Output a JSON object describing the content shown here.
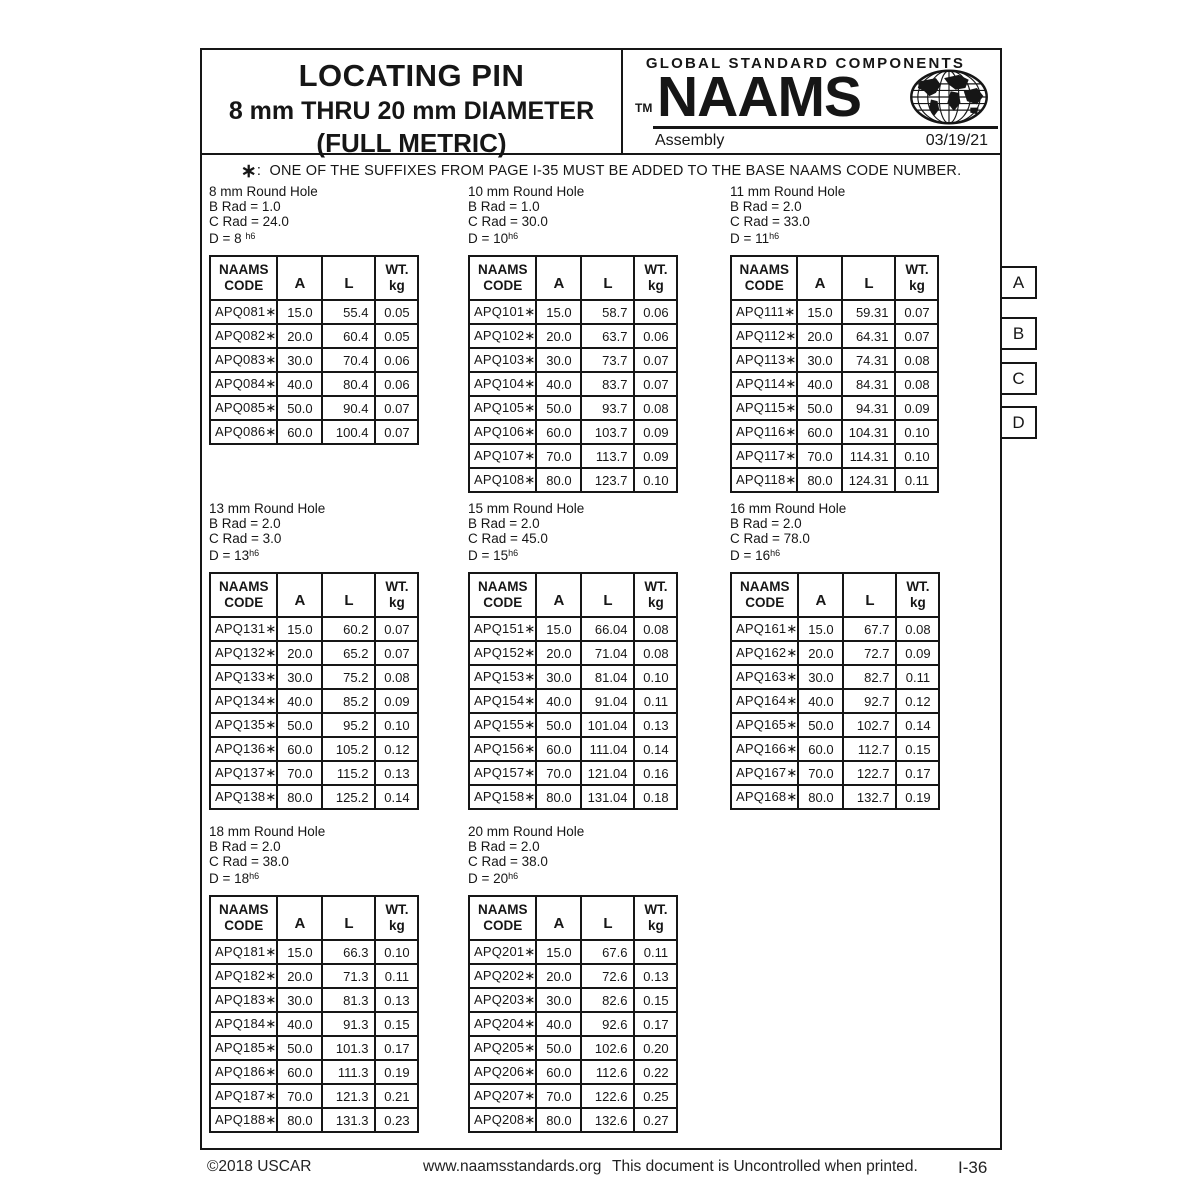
{
  "header": {
    "title_line1": "LOCATING PIN",
    "title_line2": "8 mm THRU 20 mm DIAMETER",
    "title_line3": "(FULL METRIC)",
    "brand_top": "GLOBAL STANDARD COMPONENTS",
    "brand_tm": "TM",
    "brand_name": "NAAMS",
    "globe_icon": "globe-icon",
    "subtitle_left": "Assembly",
    "subtitle_right": "03/19/21"
  },
  "note": {
    "star": "∗",
    "separator": ":",
    "text": "ONE OF THE SUFFIXES FROM PAGE I-35 MUST BE ADDED TO THE BASE NAAMS CODE NUMBER."
  },
  "table_headers": {
    "code": "NAAMS\nCODE",
    "a": "A",
    "l": "L",
    "wt": "WT.\nkg"
  },
  "side_tabs": {
    "a": "A",
    "b": "B",
    "c": "C",
    "d": "D"
  },
  "sections": [
    {
      "info": [
        "8 mm Round Hole",
        "B Rad = 1.0",
        "C Rad = 24.0"
      ],
      "d_base": "D = 8 ",
      "d_sup": "h6",
      "rows": [
        [
          "APQ081∗",
          "15.0",
          "55.4",
          "0.05"
        ],
        [
          "APQ082∗",
          "20.0",
          "60.4",
          "0.05"
        ],
        [
          "APQ083∗",
          "30.0",
          "70.4",
          "0.06"
        ],
        [
          "APQ084∗",
          "40.0",
          "80.4",
          "0.06"
        ],
        [
          "APQ085∗",
          "50.0",
          "90.4",
          "0.07"
        ],
        [
          "APQ086∗",
          "60.0",
          "100.4",
          "0.07"
        ]
      ]
    },
    {
      "info": [
        "10 mm Round Hole",
        "B Rad = 1.0",
        "C Rad = 30.0"
      ],
      "d_base": "D = 10",
      "d_sup": "h6",
      "rows": [
        [
          "APQ101∗",
          "15.0",
          "58.7",
          "0.06"
        ],
        [
          "APQ102∗",
          "20.0",
          "63.7",
          "0.06"
        ],
        [
          "APQ103∗",
          "30.0",
          "73.7",
          "0.07"
        ],
        [
          "APQ104∗",
          "40.0",
          "83.7",
          "0.07"
        ],
        [
          "APQ105∗",
          "50.0",
          "93.7",
          "0.08"
        ],
        [
          "APQ106∗",
          "60.0",
          "103.7",
          "0.09"
        ],
        [
          "APQ107∗",
          "70.0",
          "113.7",
          "0.09"
        ],
        [
          "APQ108∗",
          "80.0",
          "123.7",
          "0.10"
        ]
      ]
    },
    {
      "info": [
        "11 mm Round Hole",
        "B Rad = 2.0",
        "C Rad = 33.0"
      ],
      "d_base": "D = 11",
      "d_sup": "h6",
      "rows": [
        [
          "APQ111∗",
          "15.0",
          "59.31",
          "0.07"
        ],
        [
          "APQ112∗",
          "20.0",
          "64.31",
          "0.07"
        ],
        [
          "APQ113∗",
          "30.0",
          "74.31",
          "0.08"
        ],
        [
          "APQ114∗",
          "40.0",
          "84.31",
          "0.08"
        ],
        [
          "APQ115∗",
          "50.0",
          "94.31",
          "0.09"
        ],
        [
          "APQ116∗",
          "60.0",
          "104.31",
          "0.10"
        ],
        [
          "APQ117∗",
          "70.0",
          "114.31",
          "0.10"
        ],
        [
          "APQ118∗",
          "80.0",
          "124.31",
          "0.11"
        ]
      ]
    },
    {
      "info": [
        "13 mm Round Hole",
        "B Rad = 2.0",
        "C Rad = 3.0"
      ],
      "d_base": "D = 13",
      "d_sup": "h6",
      "rows": [
        [
          "APQ131∗",
          "15.0",
          "60.2",
          "0.07"
        ],
        [
          "APQ132∗",
          "20.0",
          "65.2",
          "0.07"
        ],
        [
          "APQ133∗",
          "30.0",
          "75.2",
          "0.08"
        ],
        [
          "APQ134∗",
          "40.0",
          "85.2",
          "0.09"
        ],
        [
          "APQ135∗",
          "50.0",
          "95.2",
          "0.10"
        ],
        [
          "APQ136∗",
          "60.0",
          "105.2",
          "0.12"
        ],
        [
          "APQ137∗",
          "70.0",
          "115.2",
          "0.13"
        ],
        [
          "APQ138∗",
          "80.0",
          "125.2",
          "0.14"
        ]
      ]
    },
    {
      "info": [
        "15 mm Round Hole",
        "B Rad = 2.0",
        "C Rad = 45.0"
      ],
      "d_base": "D = 15",
      "d_sup": "h6",
      "rows": [
        [
          "APQ151∗",
          "15.0",
          "66.04",
          "0.08"
        ],
        [
          "APQ152∗",
          "20.0",
          "71.04",
          "0.08"
        ],
        [
          "APQ153∗",
          "30.0",
          "81.04",
          "0.10"
        ],
        [
          "APQ154∗",
          "40.0",
          "91.04",
          "0.11"
        ],
        [
          "APQ155∗",
          "50.0",
          "101.04",
          "0.13"
        ],
        [
          "APQ156∗",
          "60.0",
          "111.04",
          "0.14"
        ],
        [
          "APQ157∗",
          "70.0",
          "121.04",
          "0.16"
        ],
        [
          "APQ158∗",
          "80.0",
          "131.04",
          "0.18"
        ]
      ]
    },
    {
      "info": [
        "16 mm Round Hole",
        "B Rad = 2.0",
        "C Rad = 78.0"
      ],
      "d_base": "D = 16",
      "d_sup": "h6",
      "rows": [
        [
          "APQ161∗",
          "15.0",
          "67.7",
          "0.08"
        ],
        [
          "APQ162∗",
          "20.0",
          "72.7",
          "0.09"
        ],
        [
          "APQ163∗",
          "30.0",
          "82.7",
          "0.11"
        ],
        [
          "APQ164∗",
          "40.0",
          "92.7",
          "0.12"
        ],
        [
          "APQ165∗",
          "50.0",
          "102.7",
          "0.14"
        ],
        [
          "APQ166∗",
          "60.0",
          "112.7",
          "0.15"
        ],
        [
          "APQ167∗",
          "70.0",
          "122.7",
          "0.17"
        ],
        [
          "APQ168∗",
          "80.0",
          "132.7",
          "0.19"
        ]
      ]
    },
    {
      "info": [
        "18 mm Round Hole",
        "B Rad = 2.0",
        "C Rad = 38.0"
      ],
      "d_base": "D = 18",
      "d_sup": "h6",
      "rows": [
        [
          "APQ181∗",
          "15.0",
          "66.3",
          "0.10"
        ],
        [
          "APQ182∗",
          "20.0",
          "71.3",
          "0.11"
        ],
        [
          "APQ183∗",
          "30.0",
          "81.3",
          "0.13"
        ],
        [
          "APQ184∗",
          "40.0",
          "91.3",
          "0.15"
        ],
        [
          "APQ185∗",
          "50.0",
          "101.3",
          "0.17"
        ],
        [
          "APQ186∗",
          "60.0",
          "111.3",
          "0.19"
        ],
        [
          "APQ187∗",
          "70.0",
          "121.3",
          "0.21"
        ],
        [
          "APQ188∗",
          "80.0",
          "131.3",
          "0.23"
        ]
      ]
    },
    {
      "info": [
        "20 mm Round Hole",
        "B Rad = 2.0",
        "C Rad = 38.0"
      ],
      "d_base": "D = 20",
      "d_sup": "h6",
      "rows": [
        [
          "APQ201∗",
          "15.0",
          "67.6",
          "0.11"
        ],
        [
          "APQ202∗",
          "20.0",
          "72.6",
          "0.13"
        ],
        [
          "APQ203∗",
          "30.0",
          "82.6",
          "0.15"
        ],
        [
          "APQ204∗",
          "40.0",
          "92.6",
          "0.17"
        ],
        [
          "APQ205∗",
          "50.0",
          "102.6",
          "0.20"
        ],
        [
          "APQ206∗",
          "60.0",
          "112.6",
          "0.22"
        ],
        [
          "APQ207∗",
          "70.0",
          "122.6",
          "0.25"
        ],
        [
          "APQ208∗",
          "80.0",
          "132.6",
          "0.27"
        ]
      ]
    }
  ],
  "footer": {
    "copyright": "©2018 USCAR",
    "url": "www.naamsstandards.org",
    "uncontrolled": "This document is Uncontrolled when printed.",
    "page_number": "I-36"
  }
}
